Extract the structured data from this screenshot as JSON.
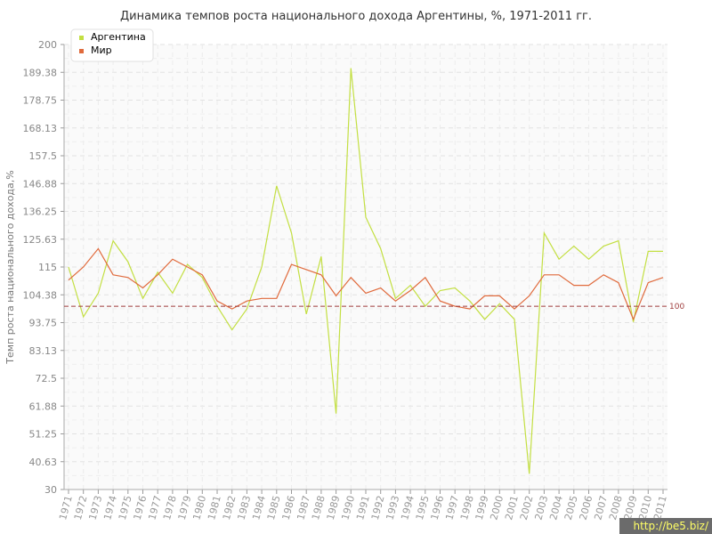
{
  "chart_data": {
    "type": "line",
    "title": "Динамика темпов роста национального дохода Аргентины, %, 1971-2011 гг.",
    "ylabel": "Темп роста национального дохода,%",
    "xlabel": "",
    "ylim": [
      30,
      200
    ],
    "yticks": [
      "200",
      "189.38",
      "178.75",
      "168.13",
      "157.5",
      "146.88",
      "136.25",
      "125.63",
      "115",
      "104.38",
      "93.75",
      "83.13",
      "72.5",
      "61.88",
      "51.25",
      "40.63",
      "30"
    ],
    "categories": [
      "1971",
      "1972",
      "1973",
      "1974",
      "1975",
      "1976",
      "1977",
      "1978",
      "1979",
      "1980",
      "1981",
      "1982",
      "1983",
      "1984",
      "1985",
      "1986",
      "1987",
      "1988",
      "1989",
      "1990",
      "1991",
      "1992",
      "1993",
      "1994",
      "1995",
      "1996",
      "1997",
      "1998",
      "1999",
      "2000",
      "2001",
      "2002",
      "2003",
      "2004",
      "2005",
      "2006",
      "2007",
      "2008",
      "2009",
      "2010",
      "2011"
    ],
    "series": [
      {
        "name": "Аргентина",
        "color": "#c3df42",
        "values": [
          115,
          96,
          105,
          125,
          117,
          103,
          113,
          105,
          116,
          111,
          100,
          91,
          99,
          115,
          146,
          128,
          97,
          119,
          59,
          191,
          134,
          122,
          103,
          108,
          100,
          106,
          107,
          102,
          95,
          101,
          95,
          36,
          128,
          118,
          123,
          118,
          123,
          125,
          94,
          121,
          121
        ]
      },
      {
        "name": "Мир",
        "color": "#e06a3c",
        "values": [
          110,
          115,
          122,
          112,
          111,
          107,
          112,
          118,
          115,
          112,
          102,
          99,
          102,
          103,
          103,
          116,
          114,
          112,
          104,
          111,
          105,
          107,
          102,
          106,
          111,
          102,
          100,
          99,
          104,
          104,
          99,
          104,
          112,
          112,
          108,
          108,
          112,
          109,
          95,
          109,
          111
        ]
      }
    ],
    "reference_line": {
      "value": 100,
      "label": "100",
      "color": "#9e3b3b"
    },
    "legend_position": "top-left",
    "grid": true
  },
  "watermark": "http://be5.biz/"
}
